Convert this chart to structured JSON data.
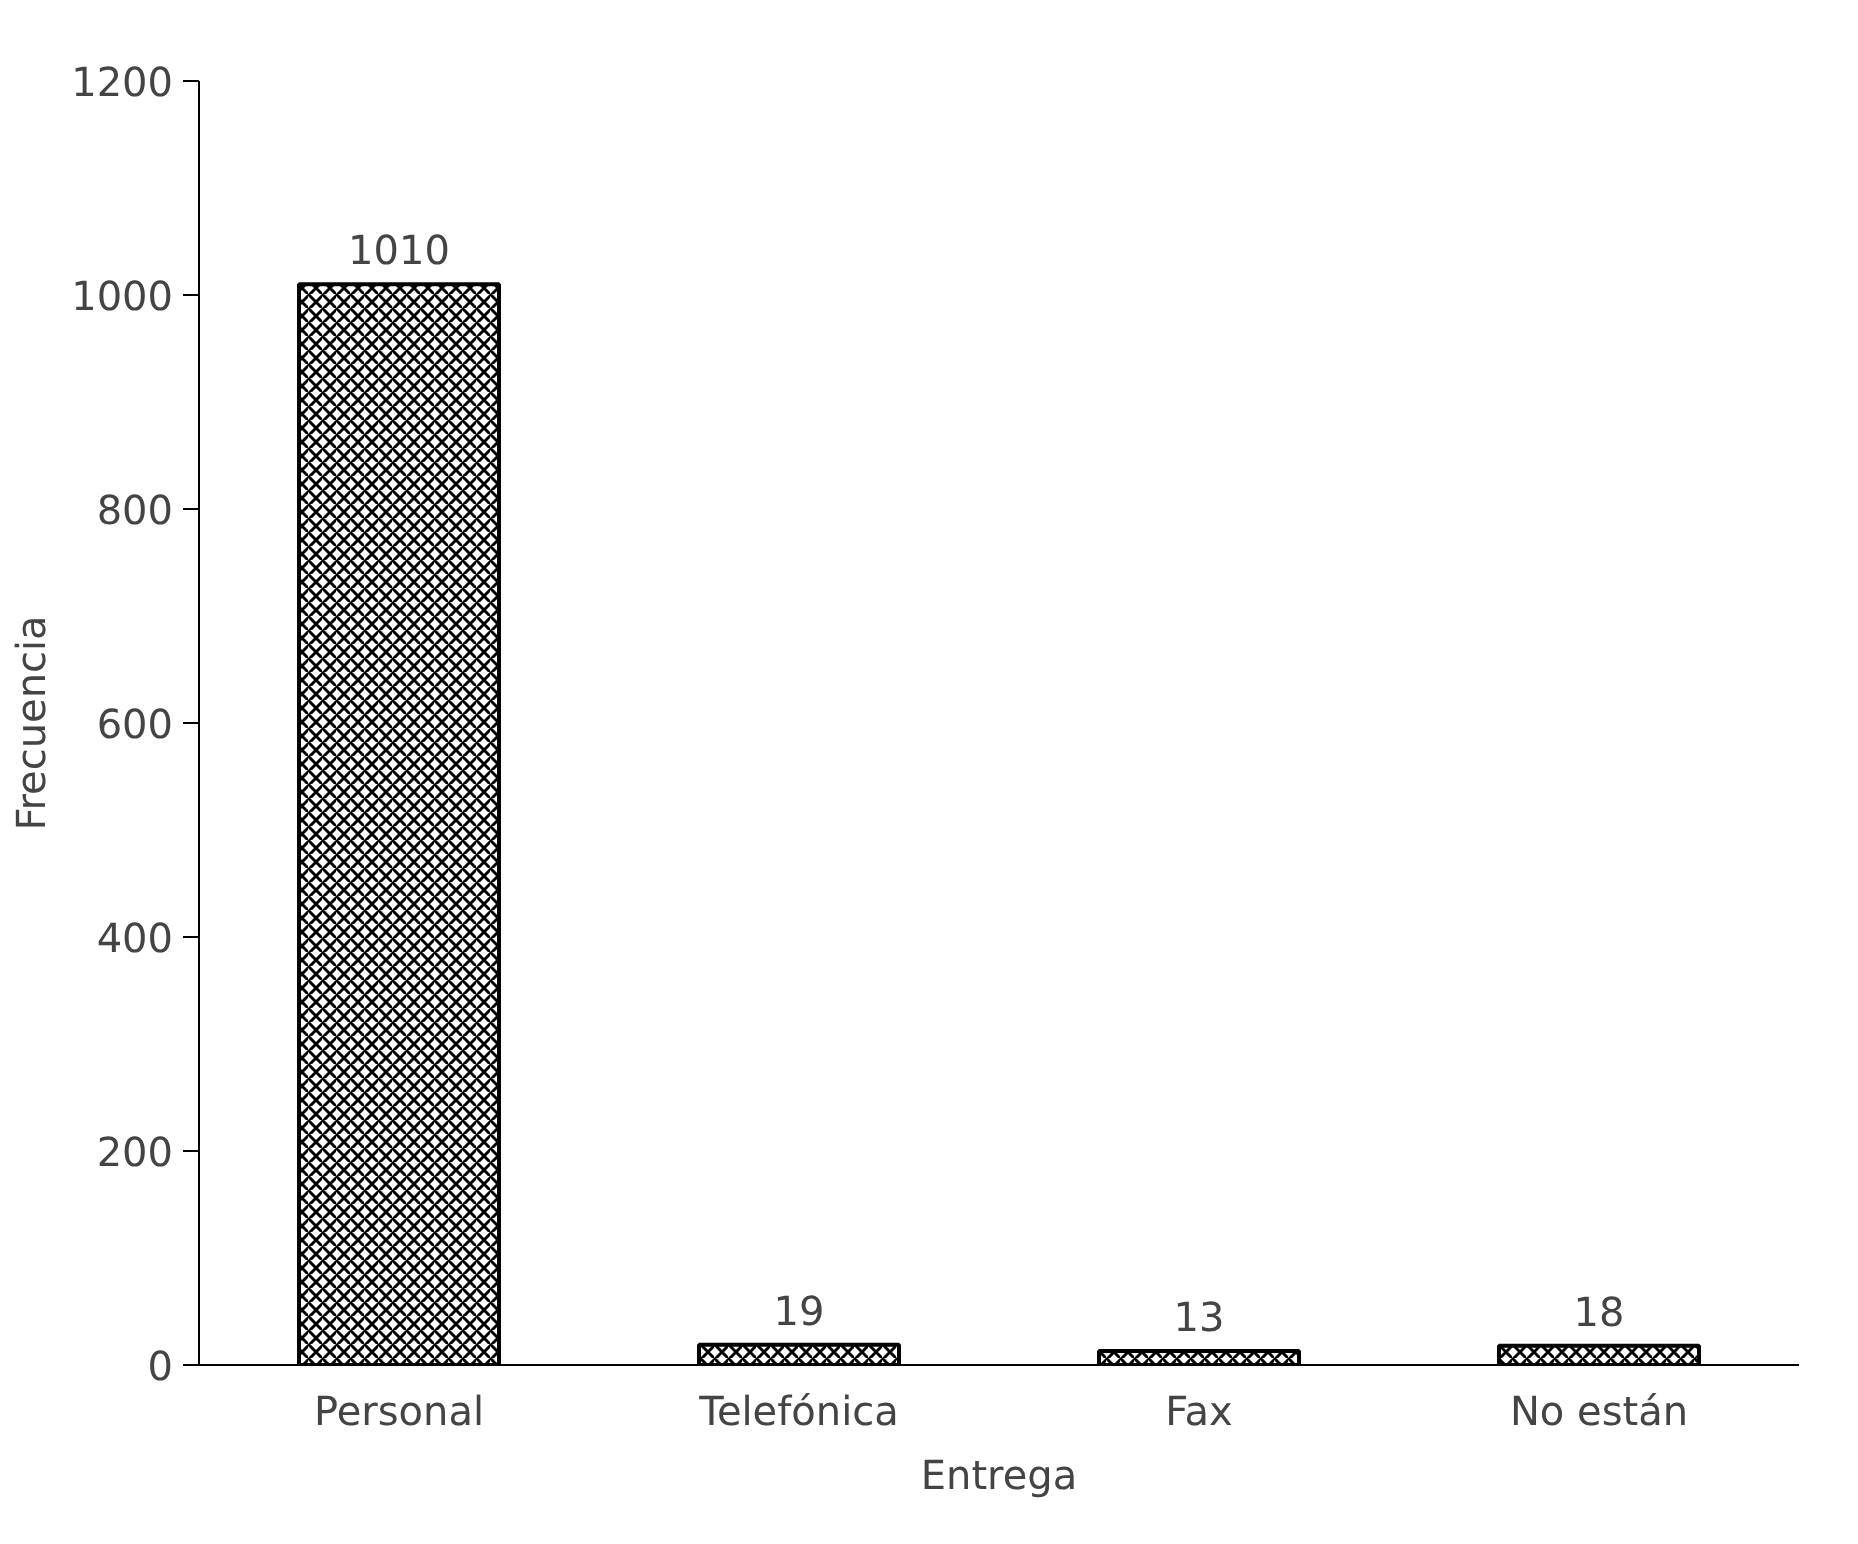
{
  "chart_data": {
    "type": "bar",
    "xlabel": "Entrega",
    "ylabel": "Frecuencia",
    "categories": [
      "Personal",
      "Telefónica",
      "Fax",
      "No están"
    ],
    "values": [
      1010,
      19,
      13,
      18
    ],
    "color": "#000000",
    "ylim": [
      0,
      1200
    ],
    "yticks": [
      0,
      200,
      400,
      600,
      800,
      1000,
      1200
    ],
    "grid": false,
    "data_labels": true
  }
}
